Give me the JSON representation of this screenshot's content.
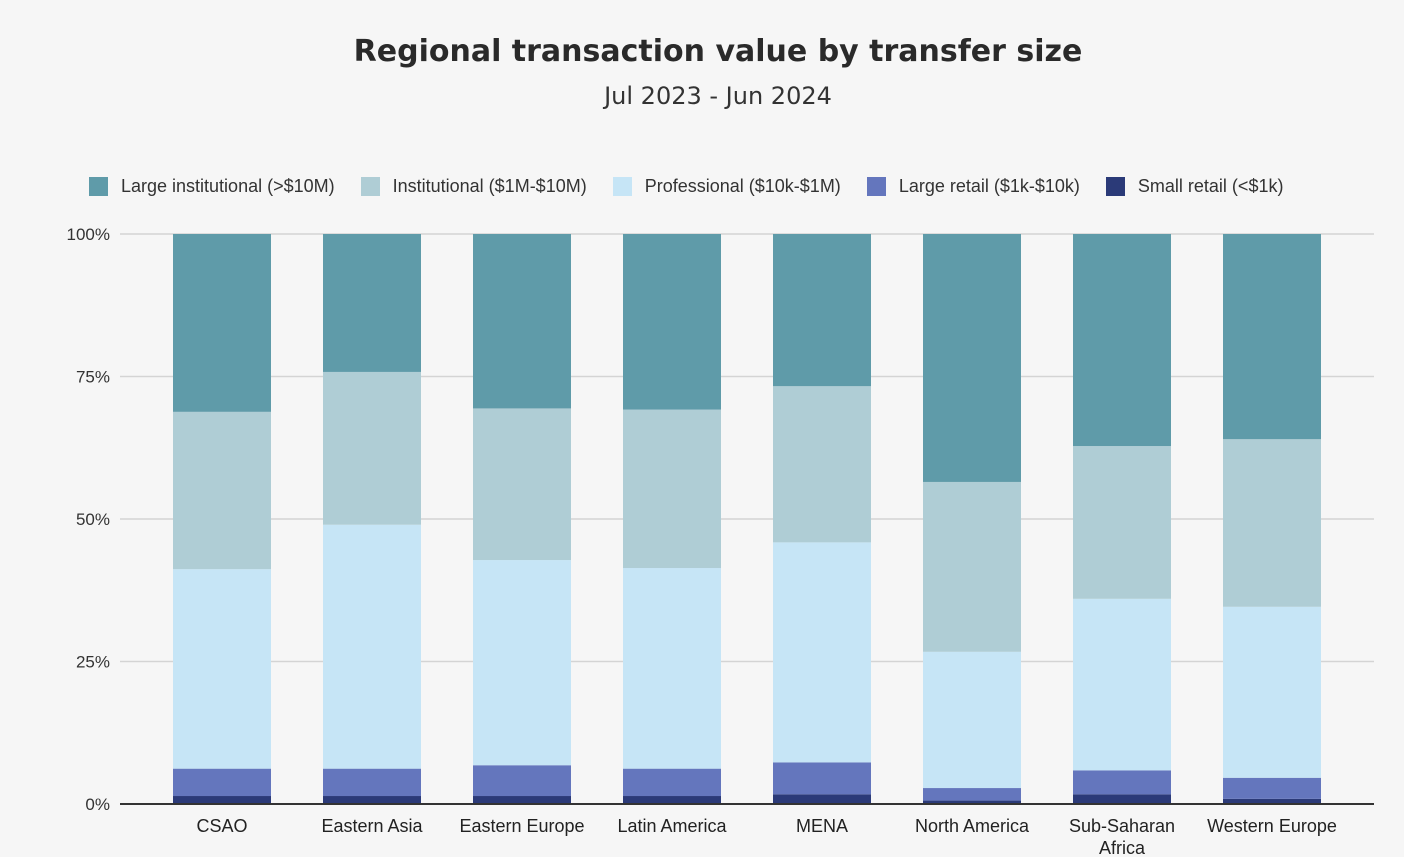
{
  "chart_data": {
    "type": "bar",
    "stacked": true,
    "title": "Regional transaction value by transfer size",
    "subtitle": "Jul 2023 - Jun 2024",
    "categories": [
      "CSAO",
      "Eastern Asia",
      "Eastern Europe",
      "Latin America",
      "MENA",
      "North America",
      "Sub-Saharan Africa",
      "Western Europe"
    ],
    "category_lines": [
      [
        "CSAO"
      ],
      [
        "Eastern Asia"
      ],
      [
        "Eastern Europe"
      ],
      [
        "Latin America"
      ],
      [
        "MENA"
      ],
      [
        "North America"
      ],
      [
        "Sub-Saharan",
        "Africa"
      ],
      [
        "Western Europe"
      ]
    ],
    "yticks": [
      "0%",
      "25%",
      "50%",
      "75%",
      "100%"
    ],
    "ylim": [
      0,
      100
    ],
    "legend_position": "top",
    "grid": true,
    "series": [
      {
        "name": "Small retail (<$1k)",
        "color": "#2b3a78",
        "values": [
          1.4,
          1.4,
          1.4,
          1.4,
          1.7,
          0.6,
          1.7,
          0.9
        ]
      },
      {
        "name": "Large retail ($1k-$10k)",
        "color": "#6476bd",
        "values": [
          4.8,
          4.8,
          5.4,
          4.8,
          5.6,
          2.2,
          4.2,
          3.7
        ]
      },
      {
        "name": "Professional ($10k-$1M)",
        "color": "#c6e5f6",
        "values": [
          35.0,
          42.8,
          36.0,
          35.2,
          38.6,
          23.9,
          30.1,
          30.0
        ]
      },
      {
        "name": "Institutional ($1M-$10M)",
        "color": "#afcdd5",
        "values": [
          27.6,
          26.8,
          26.6,
          27.8,
          27.4,
          29.8,
          26.8,
          29.4
        ]
      },
      {
        "name": "Large institutional (>$10M)",
        "color": "#5f9ba9",
        "values": [
          31.2,
          24.2,
          30.6,
          30.8,
          26.7,
          43.5,
          37.2,
          36.0
        ]
      }
    ],
    "legend_order": [
      4,
      3,
      2,
      1,
      0
    ]
  }
}
